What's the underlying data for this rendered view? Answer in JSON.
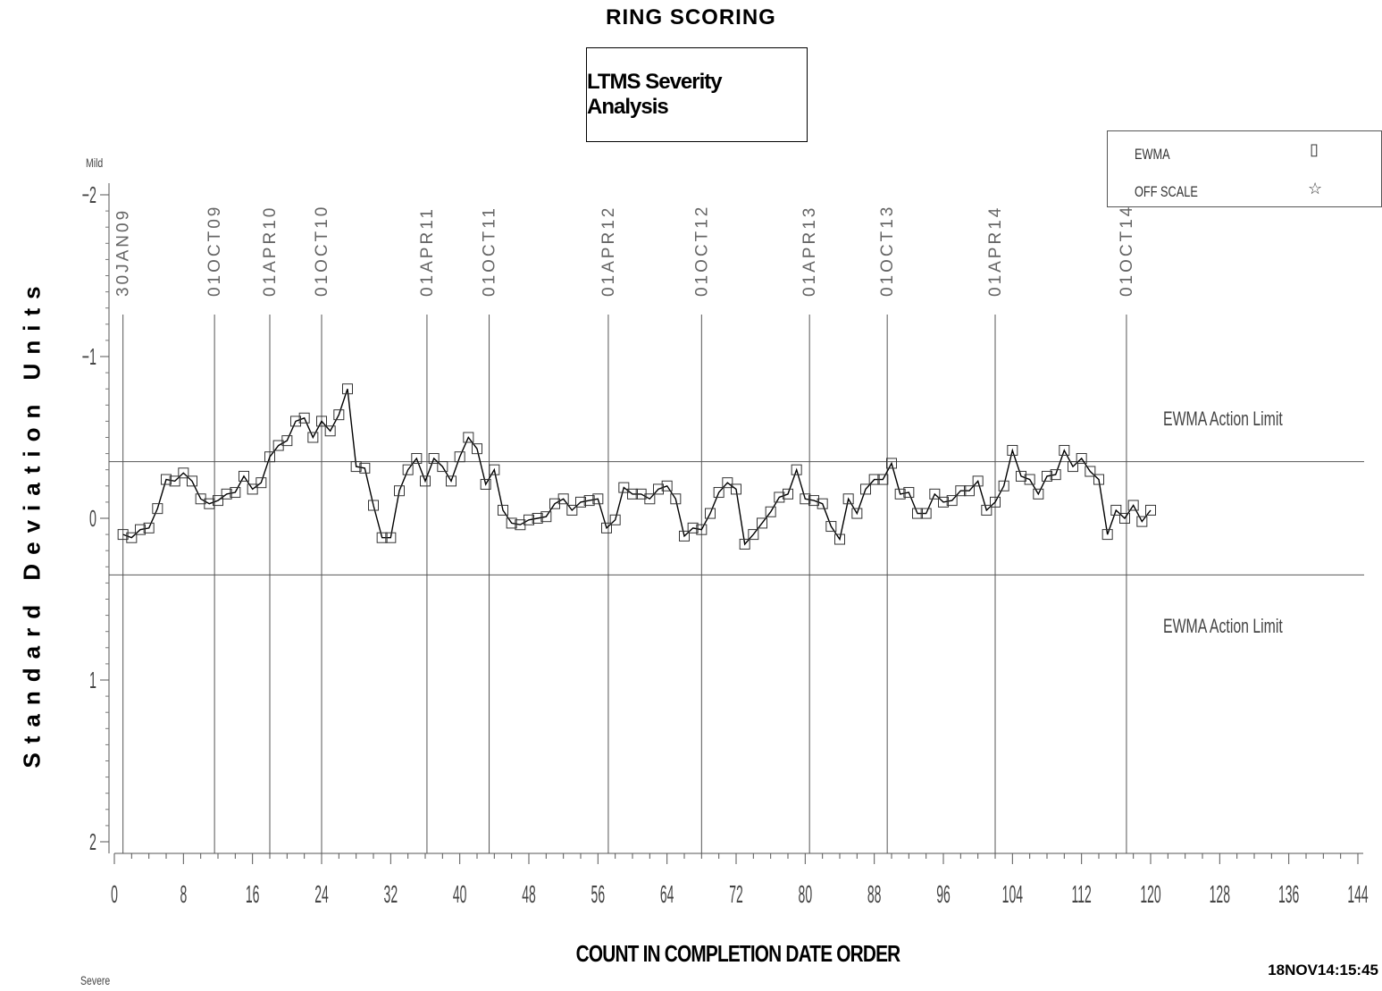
{
  "title": "RING SCORING",
  "subtitle": "LTMS Severity Analysis",
  "legend": {
    "items": [
      {
        "label": "EWMA",
        "symbol": "square-icon"
      },
      {
        "label": "OFF SCALE",
        "symbol": "star-icon"
      }
    ]
  },
  "y_top_label": "Mild",
  "y_bottom_label": "Severe",
  "timestamp": "18NOV14:15:45",
  "chart_data": {
    "type": "line",
    "title": "RING SCORING",
    "subtitle": "LTMS Severity Analysis",
    "xlabel": "COUNT IN COMPLETION DATE ORDER",
    "ylabel": "Standard Deviation Units",
    "xlim": [
      0,
      144
    ],
    "ylim": [
      2,
      -2
    ],
    "y_reversed": true,
    "x_ticks": [
      0,
      8,
      16,
      24,
      32,
      40,
      48,
      56,
      64,
      72,
      80,
      88,
      96,
      104,
      112,
      120,
      128,
      136,
      144
    ],
    "y_ticks": [
      -2,
      -1,
      0,
      1,
      2
    ],
    "y_tick_labels": [
      "−2",
      "−1",
      "0",
      "1",
      "2"
    ],
    "action_limits": [
      {
        "name": "EWMA Action Limit",
        "value": -0.35
      },
      {
        "name": "EWMA Action Limit",
        "value": 0.35
      }
    ],
    "date_markers": [
      {
        "label": "30JAN09",
        "x": 1
      },
      {
        "label": "01OCT09",
        "x": 11.6
      },
      {
        "label": "01APR10",
        "x": 18
      },
      {
        "label": "01OCT10",
        "x": 24
      },
      {
        "label": "01APR11",
        "x": 36.2
      },
      {
        "label": "01OCT11",
        "x": 43.4
      },
      {
        "label": "01APR12",
        "x": 57.2
      },
      {
        "label": "01OCT12",
        "x": 68
      },
      {
        "label": "01APR13",
        "x": 80.5
      },
      {
        "label": "01OCT13",
        "x": 89.5
      },
      {
        "label": "01APR14",
        "x": 102
      },
      {
        "label": "01OCT14",
        "x": 117.2
      }
    ],
    "series": [
      {
        "name": "EWMA",
        "x": [
          1,
          2,
          3,
          4,
          5,
          6,
          7,
          8,
          9,
          10,
          11,
          12,
          13,
          14,
          15,
          16,
          17,
          18,
          19,
          20,
          21,
          22,
          23,
          24,
          25,
          26,
          27,
          28,
          29,
          30,
          31,
          32,
          33,
          34,
          35,
          36,
          37,
          38,
          39,
          40,
          41,
          42,
          43,
          44,
          45,
          46,
          47,
          48,
          49,
          50,
          51,
          52,
          53,
          54,
          55,
          56,
          57,
          58,
          59,
          60,
          61,
          62,
          63,
          64,
          65,
          66,
          67,
          68,
          69,
          70,
          71,
          72,
          73,
          74,
          75,
          76,
          77,
          78,
          79,
          80,
          81,
          82,
          83,
          84,
          85,
          86,
          87,
          88,
          89,
          90,
          91,
          92,
          93,
          94,
          95,
          96,
          97,
          98,
          99,
          100,
          101,
          102,
          103,
          104,
          105,
          106,
          107,
          108,
          109,
          110,
          111,
          112,
          113,
          114,
          115,
          116,
          117,
          118,
          119,
          120
        ],
        "y": [
          0.1,
          0.12,
          0.07,
          0.06,
          -0.06,
          -0.24,
          -0.23,
          -0.28,
          -0.23,
          -0.12,
          -0.09,
          -0.11,
          -0.15,
          -0.16,
          -0.26,
          -0.18,
          -0.22,
          -0.38,
          -0.45,
          -0.48,
          -0.6,
          -0.62,
          -0.5,
          -0.6,
          -0.54,
          -0.64,
          -0.8,
          -0.32,
          -0.31,
          -0.08,
          0.12,
          0.12,
          -0.17,
          -0.3,
          -0.37,
          -0.23,
          -0.37,
          -0.32,
          -0.23,
          -0.38,
          -0.5,
          -0.43,
          -0.21,
          -0.3,
          -0.05,
          0.03,
          0.04,
          0.01,
          0.0,
          -0.01,
          -0.09,
          -0.12,
          -0.05,
          -0.1,
          -0.11,
          -0.12,
          0.06,
          0.01,
          -0.19,
          -0.15,
          -0.15,
          -0.12,
          -0.18,
          -0.2,
          -0.12,
          0.11,
          0.06,
          0.07,
          -0.03,
          -0.16,
          -0.22,
          -0.18,
          0.16,
          0.1,
          0.03,
          -0.04,
          -0.13,
          -0.15,
          -0.3,
          -0.12,
          -0.11,
          -0.09,
          0.05,
          0.13,
          -0.12,
          -0.03,
          -0.18,
          -0.24,
          -0.24,
          -0.34,
          -0.15,
          -0.16,
          -0.03,
          -0.03,
          -0.15,
          -0.1,
          -0.11,
          -0.17,
          -0.17,
          -0.23,
          -0.05,
          -0.1,
          -0.2,
          -0.42,
          -0.26,
          -0.24,
          -0.15,
          -0.26,
          -0.27,
          -0.42,
          -0.32,
          -0.37,
          -0.29,
          -0.24,
          0.1,
          -0.05,
          0.0,
          -0.08,
          0.02,
          -0.05
        ]
      }
    ],
    "grid": false,
    "legend_position": "top-right"
  }
}
